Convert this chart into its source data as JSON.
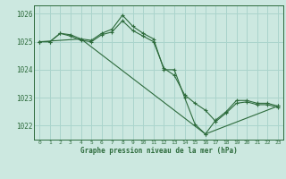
{
  "title": "Graphe pression niveau de la mer (hPa)",
  "background_color": "#cce8e0",
  "grid_color": "#aad4cc",
  "line_color": "#2d6b3c",
  "xlim": [
    -0.5,
    23.5
  ],
  "ylim": [
    1021.5,
    1026.3
  ],
  "yticks": [
    1022,
    1023,
    1024,
    1025,
    1026
  ],
  "xticks": [
    0,
    1,
    2,
    3,
    4,
    5,
    6,
    7,
    8,
    9,
    10,
    11,
    12,
    13,
    14,
    15,
    16,
    17,
    18,
    19,
    20,
    21,
    22,
    23
  ],
  "series": [
    {
      "x": [
        0,
        1,
        2,
        3,
        4,
        5,
        6,
        7,
        8,
        9,
        10,
        11,
        12,
        13,
        14,
        15,
        16,
        17,
        18,
        19,
        20,
        21,
        22,
        23
      ],
      "y": [
        1025.0,
        1025.0,
        1025.3,
        1025.25,
        1025.1,
        1025.05,
        1025.3,
        1025.45,
        1025.95,
        1025.55,
        1025.3,
        1025.1,
        1024.0,
        1024.0,
        1023.0,
        1022.05,
        1021.7,
        1022.2,
        1022.5,
        1022.9,
        1022.9,
        1022.8,
        1022.8,
        1022.7
      ]
    },
    {
      "x": [
        0,
        1,
        2,
        3,
        4,
        5,
        6,
        7,
        8,
        9,
        10,
        11,
        12,
        13,
        14,
        15,
        16,
        17,
        18,
        19,
        20,
        21,
        22,
        23
      ],
      "y": [
        1025.0,
        1025.0,
        1025.3,
        1025.2,
        1025.05,
        1025.0,
        1025.25,
        1025.35,
        1025.75,
        1025.4,
        1025.2,
        1025.0,
        1024.05,
        1023.8,
        1023.1,
        1022.8,
        1022.55,
        1022.15,
        1022.45,
        1022.8,
        1022.85,
        1022.75,
        1022.75,
        1022.65
      ]
    },
    {
      "x": [
        0,
        4,
        16,
        23
      ],
      "y": [
        1025.0,
        1025.1,
        1021.7,
        1022.7
      ]
    }
  ]
}
